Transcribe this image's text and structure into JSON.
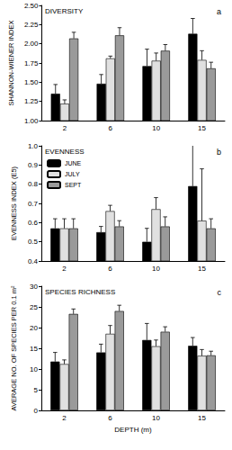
{
  "chart_data": [
    {
      "type": "bar",
      "title": "DIVERSITY",
      "annotations": [
        "a"
      ],
      "ylabel": "SHANNON-WIENER INDEX",
      "categories": [
        "2",
        "6",
        "10",
        "15"
      ],
      "series": [
        {
          "name": "JUNE",
          "color": "#000000",
          "values": [
            1.35,
            1.48,
            1.71,
            2.13
          ],
          "errors": [
            0.12,
            0.12,
            0.22,
            0.2
          ]
        },
        {
          "name": "JULY",
          "color": "#e0e0e0",
          "values": [
            1.22,
            1.81,
            1.78,
            1.79
          ],
          "errors": [
            0.05,
            0.03,
            0.1,
            0.12
          ]
        },
        {
          "name": "SEPT",
          "color": "#9a9a9a",
          "values": [
            2.07,
            2.11,
            1.91,
            1.68
          ],
          "errors": [
            0.08,
            0.1,
            0.08,
            0.08
          ]
        }
      ],
      "ylim": [
        1,
        2.5
      ],
      "yticks": [
        {
          "value": 1,
          "label": "1.00"
        },
        {
          "value": 1.25,
          "label": "1.25"
        },
        {
          "value": 1.5,
          "label": "1.50"
        },
        {
          "value": 1.75,
          "label": "1.75"
        },
        {
          "value": 2,
          "label": "2.00"
        },
        {
          "value": 2.25,
          "label": "2.25"
        },
        {
          "value": 2.5,
          "label": "2.50"
        }
      ],
      "grid": false
    },
    {
      "type": "bar",
      "title": "EVENNESS",
      "annotations": [
        "b"
      ],
      "ylabel": "EVENNESS INDEX (E5)",
      "categories": [
        "2",
        "6",
        "10",
        "15"
      ],
      "series": [
        {
          "name": "JUNE",
          "color": "#000000",
          "values": [
            0.57,
            0.55,
            0.5,
            0.79
          ],
          "errors": [
            0.05,
            0.03,
            0.07,
            0.26
          ]
        },
        {
          "name": "JULY",
          "color": "#e0e0e0",
          "values": [
            0.57,
            0.66,
            0.67,
            0.61
          ],
          "errors": [
            0.05,
            0.03,
            0.06,
            0.27
          ]
        },
        {
          "name": "SEPT",
          "color": "#9a9a9a",
          "values": [
            0.57,
            0.58,
            0.58,
            0.57
          ],
          "errors": [
            0.05,
            0.03,
            0.05,
            0.05
          ]
        }
      ],
      "ylim": [
        0.4,
        1
      ],
      "yticks": [
        0.4,
        0.5,
        0.6,
        0.7,
        0.8,
        0.9,
        {
          "value": 1,
          "label": "1.0"
        }
      ],
      "legend": "upper left",
      "grid": false
    },
    {
      "type": "bar",
      "title": "SPECIES RICHNESS",
      "annotations": [
        "c"
      ],
      "ylabel": "AVERAGE NO. OF SPECIES PER 0.1 m²",
      "xlabel": "DEPTH (m)",
      "categories": [
        "2",
        "6",
        "10",
        "15"
      ],
      "series": [
        {
          "name": "JUNE",
          "color": "#000000",
          "values": [
            11.8,
            14,
            17,
            15.6
          ],
          "errors": [
            2.2,
            2,
            4,
            2
          ]
        },
        {
          "name": "JULY",
          "color": "#e0e0e0",
          "values": [
            11.2,
            18.5,
            15.5,
            13.2
          ],
          "errors": [
            1,
            2,
            1.5,
            1.5
          ]
        },
        {
          "name": "SEPT",
          "color": "#9a9a9a",
          "values": [
            23.3,
            24,
            19,
            13.3
          ],
          "errors": [
            1.2,
            1.4,
            1.2,
            1
          ]
        }
      ],
      "ylim": [
        0,
        30
      ],
      "yticks": [
        0,
        5,
        10,
        15,
        20,
        25,
        30
      ],
      "grid": false
    }
  ]
}
